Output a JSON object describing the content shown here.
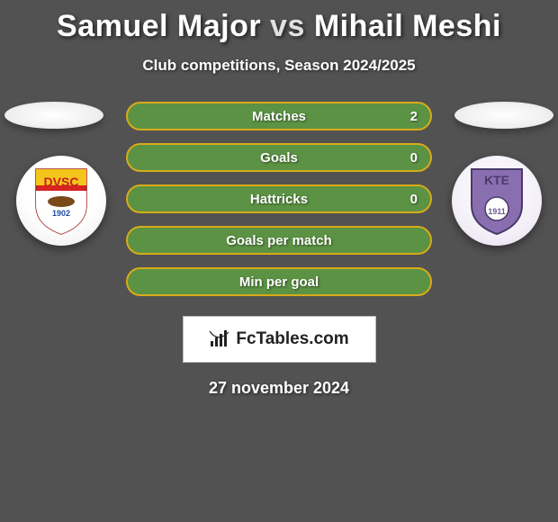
{
  "title": {
    "player1": "Samuel Major",
    "vs": "vs",
    "player2": "Mihail Meshi"
  },
  "subtitle": "Club competitions, Season 2024/2025",
  "stat_rows": [
    {
      "label": "Matches",
      "value": "2",
      "has_value": true
    },
    {
      "label": "Goals",
      "value": "0",
      "has_value": true
    },
    {
      "label": "Hattricks",
      "value": "0",
      "has_value": true
    },
    {
      "label": "Goals per match",
      "value": "",
      "has_value": false
    },
    {
      "label": "Min per goal",
      "value": "",
      "has_value": false
    }
  ],
  "pill_style": {
    "fill_color": "#5b9243",
    "border_color": "#d8ab1a",
    "label_color": "#ffffff",
    "value_color": "#ffffff"
  },
  "club_left": {
    "abbr": "DVSC",
    "year": "1902",
    "shield_colors": {
      "top": "#f4c51a",
      "mid": "#d62423",
      "bottom": "#ffffff",
      "text_color": "#c81f1f",
      "year_color": "#1f4aa0"
    }
  },
  "club_right": {
    "abbr": "KTE",
    "year": "1911",
    "shield_colors": {
      "fill": "#8a6fb0",
      "border": "#4a3a6a",
      "inner_circle": "#ffffff",
      "text_color": "#4a3a6a",
      "year_color": "#6a5a8a"
    }
  },
  "brand": {
    "label": "FcTables.com",
    "icon_color": "#222222"
  },
  "date_text": "27 november 2024",
  "background_color": "#525252"
}
